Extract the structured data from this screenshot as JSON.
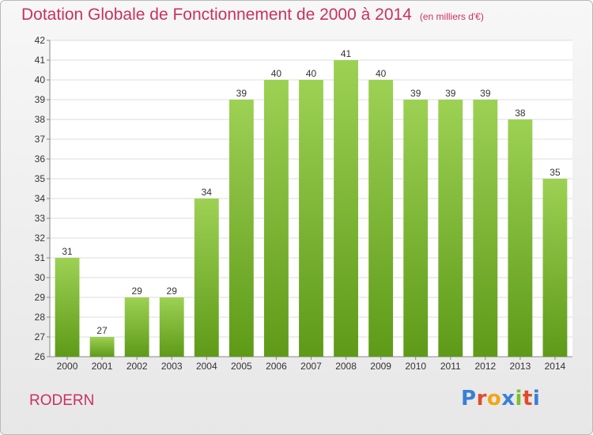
{
  "header": {
    "title": "Dotation Globale de Fonctionnement de 2000 à 2014",
    "unit": "(en milliers d'€)"
  },
  "footer": {
    "commune": "RODERN",
    "logo_letters": [
      "P",
      "r",
      "o",
      "x",
      "i",
      "t",
      "i"
    ]
  },
  "colors": {
    "bar_light": "#9dd154",
    "bar_dark": "#5e9a18",
    "title": "#c8325f"
  },
  "chart_data": {
    "type": "bar",
    "categories": [
      "2000",
      "2001",
      "2002",
      "2003",
      "2004",
      "2005",
      "2006",
      "2007",
      "2008",
      "2009",
      "2010",
      "2011",
      "2012",
      "2013",
      "2014"
    ],
    "values": [
      31,
      27,
      29,
      29,
      34,
      39,
      40,
      40,
      41,
      40,
      39,
      39,
      39,
      38,
      35
    ],
    "ylim": [
      26,
      42
    ],
    "yticks": [
      26,
      27,
      28,
      29,
      30,
      31,
      32,
      33,
      34,
      35,
      36,
      37,
      38,
      39,
      40,
      41,
      42
    ],
    "grid": true,
    "data_labels": true
  }
}
